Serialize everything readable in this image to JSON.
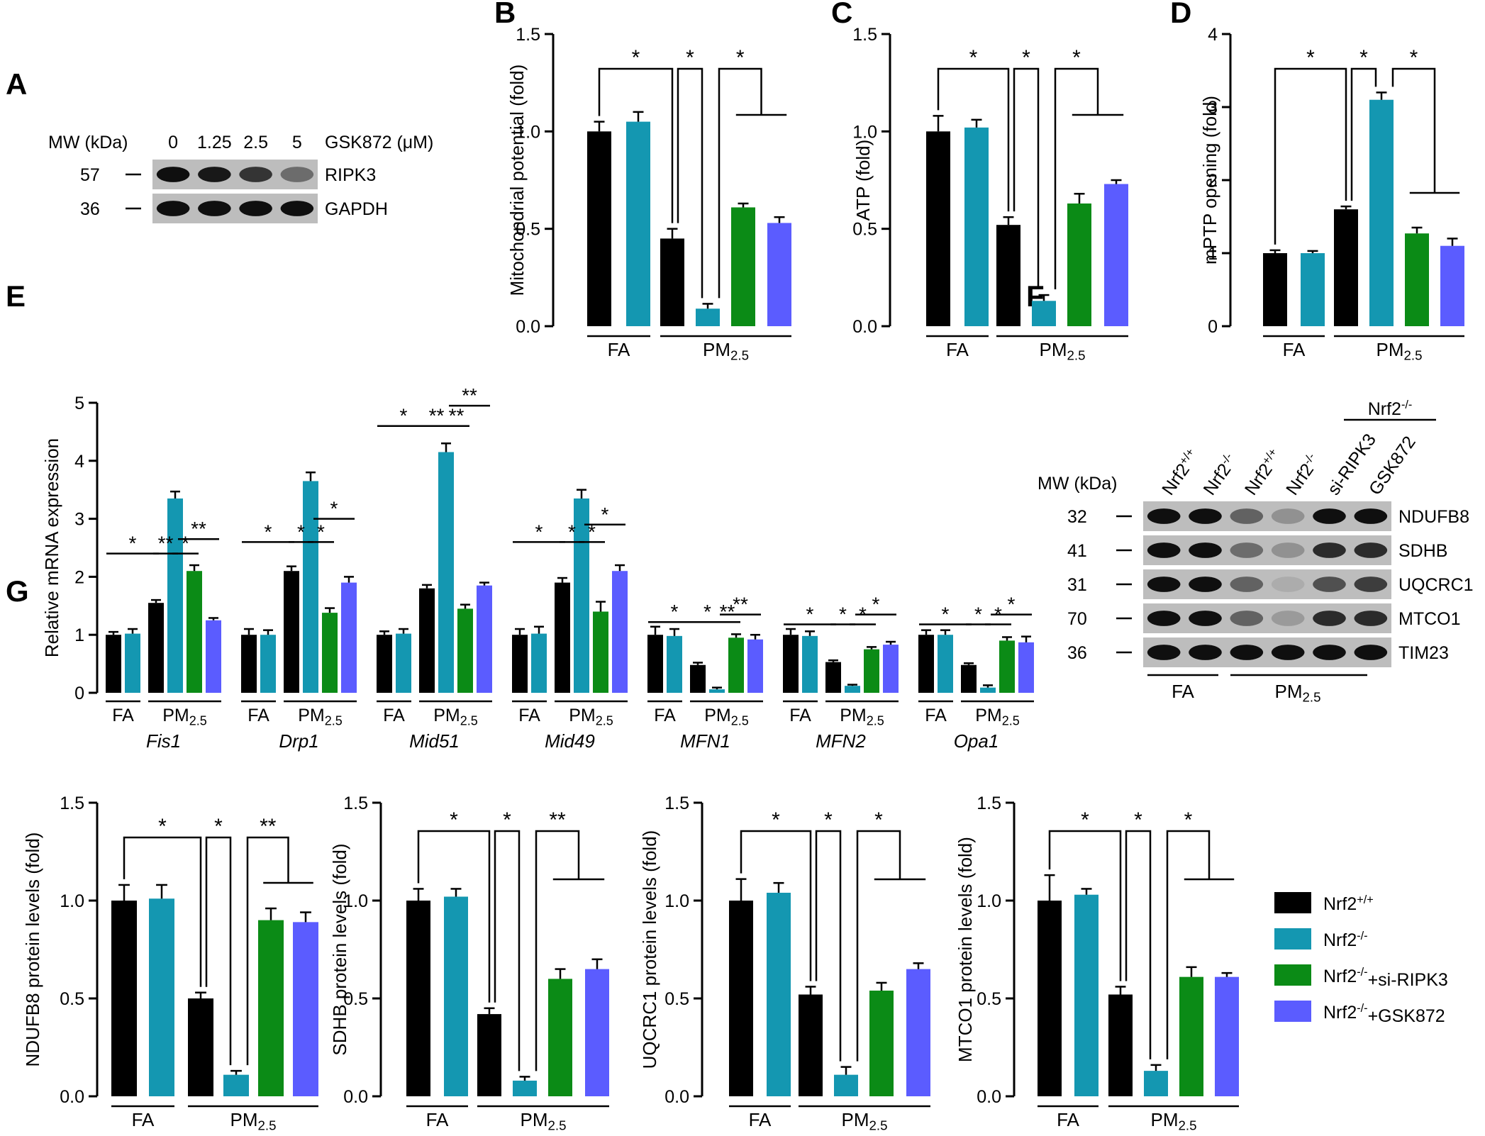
{
  "colors": {
    "nrf2_wt": "#000000",
    "nrf2_ko": "#1497b1",
    "si_ripk3": "#0b8b16",
    "gsk872": "#5b5cff"
  },
  "panel_A": {
    "letter": "A",
    "mw_header": "MW (kDa)",
    "doses": [
      "0",
      "1.25",
      "2.5",
      "5"
    ],
    "dose_label": "GSK872 (μM)",
    "bands": [
      {
        "mw": "57",
        "name": "RIPK3",
        "intensities": [
          1.0,
          0.95,
          0.8,
          0.5
        ]
      },
      {
        "mw": "36",
        "name": "GAPDH",
        "intensities": [
          1.0,
          1.0,
          1.0,
          1.0
        ]
      }
    ]
  },
  "panel_F": {
    "letter": "F",
    "mw_header": "MW (kDa)",
    "top_group_label": "Nrf2-/-",
    "lanes": [
      "Nrf2+/+",
      "Nrf2-/-",
      "Nrf2+/+",
      "Nrf2-/-",
      "si-RIPK3",
      "GSK872"
    ],
    "bands": [
      {
        "mw": "32",
        "name": "NDUFB8",
        "intensities": [
          1.0,
          1.0,
          0.55,
          0.3,
          1.0,
          1.0
        ]
      },
      {
        "mw": "41",
        "name": "SDHB",
        "intensities": [
          1.0,
          1.0,
          0.5,
          0.3,
          0.85,
          0.85
        ]
      },
      {
        "mw": "31",
        "name": "UQCRC1",
        "intensities": [
          1.0,
          1.0,
          0.55,
          0.15,
          0.65,
          0.75
        ]
      },
      {
        "mw": "70",
        "name": "MTCO1",
        "intensities": [
          1.0,
          1.0,
          0.55,
          0.25,
          0.85,
          0.85
        ]
      },
      {
        "mw": "36",
        "name": "TIM23",
        "intensities": [
          1.0,
          1.0,
          1.0,
          1.0,
          1.0,
          1.0
        ]
      }
    ],
    "groups": [
      "FA",
      "PM2.5"
    ]
  },
  "panel_G_legend": [
    "Nrf2+/+",
    "Nrf2-/-",
    "Nrf2-/-+si-RIPK3",
    "Nrf2-/-+GSK872"
  ],
  "chart_data": [
    {
      "panel": "B",
      "type": "bar",
      "ylabel": "Mitochondrial potential (fold)",
      "ylim": [
        0,
        1.5
      ],
      "yticks": [
        "0.0",
        "0.5",
        "1.0",
        "1.5"
      ],
      "groups": [
        "FA",
        "PM2.5"
      ],
      "values": [
        1.0,
        1.05,
        0.45,
        0.09,
        0.61,
        0.53
      ],
      "errors": [
        0.05,
        0.05,
        0.05,
        0.025,
        0.02,
        0.03
      ],
      "significance": [
        "*",
        "*",
        "*"
      ]
    },
    {
      "panel": "C",
      "type": "bar",
      "ylabel": "ATP (fold)",
      "ylim": [
        0,
        1.5
      ],
      "yticks": [
        "0.0",
        "0.5",
        "1.0",
        "1.5"
      ],
      "groups": [
        "FA",
        "PM2.5"
      ],
      "values": [
        1.0,
        1.02,
        0.52,
        0.13,
        0.63,
        0.73
      ],
      "errors": [
        0.08,
        0.04,
        0.04,
        0.03,
        0.05,
        0.02
      ],
      "significance": [
        "*",
        "*",
        "*"
      ]
    },
    {
      "panel": "D",
      "type": "bar",
      "ylabel": "mPTP opening (fold)",
      "ylim": [
        0,
        4
      ],
      "yticks": [
        "0",
        "1",
        "2",
        "3",
        "4"
      ],
      "groups": [
        "FA",
        "PM2.5"
      ],
      "values": [
        1.0,
        1.0,
        1.6,
        3.1,
        1.27,
        1.1
      ],
      "errors": [
        0.04,
        0.03,
        0.04,
        0.1,
        0.08,
        0.1
      ],
      "significance": [
        "*",
        "*",
        "*"
      ]
    },
    {
      "panel": "E",
      "type": "bar",
      "ylabel": "Relative mRNA expression",
      "ylim": [
        0,
        5
      ],
      "yticks": [
        "0",
        "1",
        "2",
        "3",
        "4",
        "5"
      ],
      "groups": [
        "FA",
        "PM2.5"
      ],
      "genes": [
        {
          "name": "Fis1",
          "values": [
            1.0,
            1.02,
            1.55,
            3.35,
            2.1,
            1.25
          ],
          "errors": [
            0.05,
            0.08,
            0.05,
            0.12,
            0.1,
            0.04
          ],
          "significance": [
            "*",
            "**",
            "*",
            "**"
          ]
        },
        {
          "name": "Drp1",
          "values": [
            1.0,
            1.0,
            2.1,
            3.65,
            1.38,
            1.9
          ],
          "errors": [
            0.1,
            0.08,
            0.08,
            0.15,
            0.08,
            0.1
          ],
          "significance": [
            "*",
            "*",
            "*",
            "*"
          ]
        },
        {
          "name": "Mid51",
          "values": [
            1.0,
            1.02,
            1.8,
            4.15,
            1.45,
            1.85
          ],
          "errors": [
            0.06,
            0.08,
            0.06,
            0.15,
            0.07,
            0.05
          ],
          "significance": [
            "*",
            "**",
            "**",
            "**"
          ]
        },
        {
          "name": "Mid49",
          "values": [
            1.0,
            1.02,
            1.9,
            3.35,
            1.4,
            2.1
          ],
          "errors": [
            0.1,
            0.12,
            0.08,
            0.15,
            0.17,
            0.1
          ],
          "significance": [
            "*",
            "*",
            "*",
            "*"
          ]
        },
        {
          "name": "MFN1",
          "values": [
            1.0,
            0.98,
            0.48,
            0.06,
            0.95,
            0.92
          ],
          "errors": [
            0.14,
            0.12,
            0.04,
            0.03,
            0.06,
            0.08
          ],
          "significance": [
            "*",
            "*",
            "**",
            "**"
          ]
        },
        {
          "name": "MFN2",
          "values": [
            1.0,
            0.98,
            0.53,
            0.12,
            0.75,
            0.83
          ],
          "errors": [
            0.1,
            0.08,
            0.03,
            0.02,
            0.04,
            0.05
          ],
          "significance": [
            "*",
            "*",
            "*",
            "*"
          ]
        },
        {
          "name": "Opa1",
          "values": [
            1.0,
            1.0,
            0.48,
            0.09,
            0.9,
            0.87
          ],
          "errors": [
            0.08,
            0.08,
            0.03,
            0.04,
            0.06,
            0.1
          ],
          "significance": [
            "*",
            "*",
            "*",
            "*"
          ]
        }
      ]
    },
    {
      "panel": "G",
      "type": "bar",
      "ylabel": "NDUFB8 protein levels (fold)",
      "ylim": [
        0,
        1.5
      ],
      "yticks": [
        "0.0",
        "0.5",
        "1.0",
        "1.5"
      ],
      "groups": [
        "FA",
        "PM2.5"
      ],
      "values": [
        1.0,
        1.01,
        0.5,
        0.11,
        0.9,
        0.89
      ],
      "errors": [
        0.08,
        0.07,
        0.03,
        0.02,
        0.06,
        0.05
      ],
      "significance": [
        "*",
        "*",
        "**"
      ]
    },
    {
      "panel": "G",
      "type": "bar",
      "ylabel": "SDHB protein levels (fold)",
      "ylim": [
        0,
        1.5
      ],
      "yticks": [
        "0.0",
        "0.5",
        "1.0",
        "1.5"
      ],
      "groups": [
        "FA",
        "PM2.5"
      ],
      "values": [
        1.0,
        1.02,
        0.42,
        0.08,
        0.6,
        0.65
      ],
      "errors": [
        0.06,
        0.04,
        0.03,
        0.02,
        0.05,
        0.05
      ],
      "significance": [
        "*",
        "*",
        "**"
      ]
    },
    {
      "panel": "G",
      "type": "bar",
      "ylabel": "UQCRC1 protein levels (fold)",
      "ylim": [
        0,
        1.5
      ],
      "yticks": [
        "0.0",
        "0.5",
        "1.0",
        "1.5"
      ],
      "groups": [
        "FA",
        "PM2.5"
      ],
      "values": [
        1.0,
        1.04,
        0.52,
        0.11,
        0.54,
        0.65
      ],
      "errors": [
        0.11,
        0.05,
        0.04,
        0.04,
        0.04,
        0.03
      ],
      "significance": [
        "*",
        "*",
        "*"
      ]
    },
    {
      "panel": "G",
      "type": "bar",
      "ylabel": "MTCO1 protein levels (fold)",
      "ylim": [
        0,
        1.5
      ],
      "yticks": [
        "0.0",
        "0.5",
        "1.0",
        "1.5"
      ],
      "groups": [
        "FA",
        "PM2.5"
      ],
      "values": [
        1.0,
        1.03,
        0.52,
        0.13,
        0.61,
        0.61
      ],
      "errors": [
        0.13,
        0.03,
        0.04,
        0.03,
        0.05,
        0.02
      ],
      "significance": [
        "*",
        "*",
        "*"
      ]
    }
  ]
}
